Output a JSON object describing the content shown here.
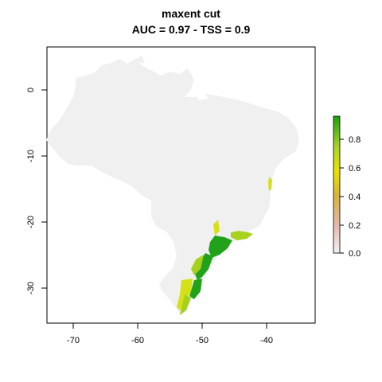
{
  "title": {
    "line1": "maxent cut",
    "line2": "AUC = 0.97 - TSS = 0.9"
  },
  "map": {
    "type": "raster-map",
    "region": "Brazil",
    "x_ticks": [
      "-70",
      "-60",
      "-50",
      "-40"
    ],
    "x_tick_values": [
      -70,
      -60,
      -50,
      -40
    ],
    "y_ticks": [
      "0",
      "-10",
      "-20",
      "-30"
    ],
    "y_tick_values": [
      0,
      -10,
      -20,
      -30
    ],
    "xlim": [
      -74,
      -33
    ],
    "ylim": [
      -35,
      7
    ],
    "background_fill": "#f0f0f0",
    "suitable_high_color": "#22a21a",
    "suitable_mid_color": "#a6d21e",
    "suitable_low_color": "#d6e016"
  },
  "legend": {
    "labels": [
      "0.8",
      "0.6",
      "0.4",
      "0.2",
      "0.0"
    ],
    "values": [
      0.8,
      0.6,
      0.4,
      0.2,
      0.0
    ],
    "range": [
      0,
      0.97
    ],
    "colors": [
      "#f2f2f2",
      "#e3b9b0",
      "#d6b43a",
      "#e8e300",
      "#a9d22a",
      "#1aa10f"
    ]
  }
}
